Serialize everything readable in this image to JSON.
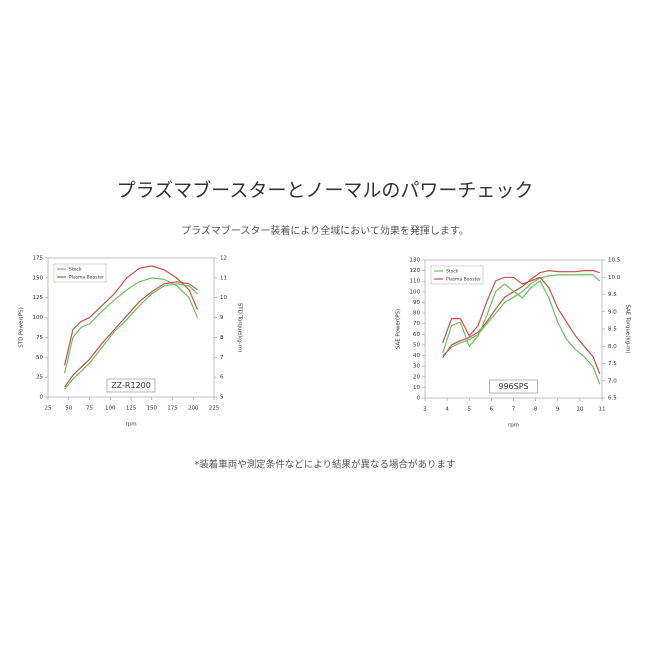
{
  "header": {
    "title": "プラズマブースターとノーマルのパワーチェック",
    "subtitle": "プラズマブースター装着により全域において効果を発揮します。"
  },
  "footnote": "*装着車両や測定条件などにより結果が異なる場合があります",
  "chart_data": [
    {
      "type": "line",
      "annotation": "ZZ-R1200",
      "xlabel": "rpm",
      "ylabel": "STD Power(PS)",
      "y2label": "STD Torque(kg-m)",
      "x": [
        45,
        55,
        65,
        75,
        90,
        105,
        120,
        135,
        150,
        165,
        180,
        195,
        205
      ],
      "xlim": [
        25,
        225
      ],
      "xticks": [
        25,
        50,
        75,
        100,
        125,
        150,
        175,
        200,
        225
      ],
      "ylim": [
        0,
        175
      ],
      "yticks": [
        0,
        25,
        50,
        75,
        100,
        125,
        150,
        175
      ],
      "y2lim": [
        5,
        12
      ],
      "y2ticks": [
        5,
        6,
        7,
        8,
        9,
        10,
        11,
        12
      ],
      "series": [
        {
          "name": "Stock",
          "color": "#6cbf5f",
          "values": [
            30,
            75,
            88,
            92,
            108,
            122,
            135,
            145,
            150,
            148,
            140,
            125,
            100
          ]
        },
        {
          "name": "Plasma Booster",
          "color": "#c9504a",
          "values": [
            40,
            85,
            95,
            100,
            115,
            130,
            150,
            162,
            165,
            160,
            150,
            135,
            110
          ]
        },
        {
          "name": "Stock",
          "color": "#6cbf5f",
          "axis": "y2",
          "values": [
            5.4,
            5.9,
            6.3,
            6.7,
            7.5,
            8.3,
            8.9,
            9.6,
            10.2,
            10.6,
            10.7,
            10.6,
            10.2
          ]
        },
        {
          "name": "Plasma Booster",
          "color": "#c9504a",
          "axis": "y2",
          "values": [
            5.5,
            6.1,
            6.5,
            6.9,
            7.7,
            8.4,
            9.1,
            9.8,
            10.3,
            10.7,
            10.8,
            10.7,
            10.4
          ]
        }
      ]
    },
    {
      "type": "line",
      "annotation": "996SPS",
      "xlabel": "rpm",
      "ylabel": "SAE Power(PS)",
      "y2label": "SAE Torque(kg-m)",
      "x": [
        3.8,
        4.2,
        4.6,
        5,
        5.4,
        5.8,
        6.2,
        6.6,
        7,
        7.4,
        7.8,
        8.2,
        8.6,
        9,
        9.4,
        9.8,
        10.2,
        10.6,
        10.9
      ],
      "xlim": [
        3,
        11
      ],
      "xticks": [
        3,
        4,
        5,
        6,
        7,
        8,
        9,
        10,
        11
      ],
      "ylim": [
        0,
        130
      ],
      "yticks": [
        0,
        10,
        20,
        30,
        40,
        50,
        60,
        70,
        80,
        90,
        100,
        110,
        120,
        130
      ],
      "y2lim": [
        6.5,
        10.5
      ],
      "y2ticks": [
        6.5,
        {
          "value": 7,
          "label": "7.0"
        },
        7.5,
        {
          "value": 8,
          "label": "8.0"
        },
        8.5,
        {
          "value": 9,
          "label": "9.0"
        },
        9.5,
        {
          "value": 10,
          "label": "10.0"
        },
        10.5
      ],
      "series": [
        {
          "name": "Stock",
          "color": "#6cbf5f",
          "values": [
            40,
            48,
            52,
            55,
            60,
            70,
            80,
            90,
            95,
            100,
            108,
            113,
            115,
            116,
            116,
            116,
            116,
            116,
            110
          ]
        },
        {
          "name": "Plasma Booster",
          "color": "#c9504a",
          "values": [
            38,
            50,
            54,
            57,
            62,
            72,
            84,
            95,
            100,
            105,
            112,
            118,
            120,
            119,
            119,
            119,
            120,
            120,
            118
          ]
        },
        {
          "name": "Stock",
          "color": "#6cbf5f",
          "axis": "y2",
          "values": [
            7.8,
            8.6,
            8.7,
            8.0,
            8.3,
            8.9,
            9.6,
            9.8,
            9.6,
            9.4,
            9.7,
            9.9,
            9.4,
            8.7,
            8.2,
            7.9,
            7.7,
            7.4,
            6.9
          ]
        },
        {
          "name": "Plasma Booster",
          "color": "#c9504a",
          "axis": "y2",
          "values": [
            8.1,
            8.8,
            8.8,
            8.3,
            8.6,
            9.3,
            9.9,
            10.0,
            10.0,
            9.8,
            9.9,
            10.0,
            9.7,
            9.1,
            8.7,
            8.3,
            8.0,
            7.7,
            7.2
          ]
        }
      ]
    }
  ]
}
